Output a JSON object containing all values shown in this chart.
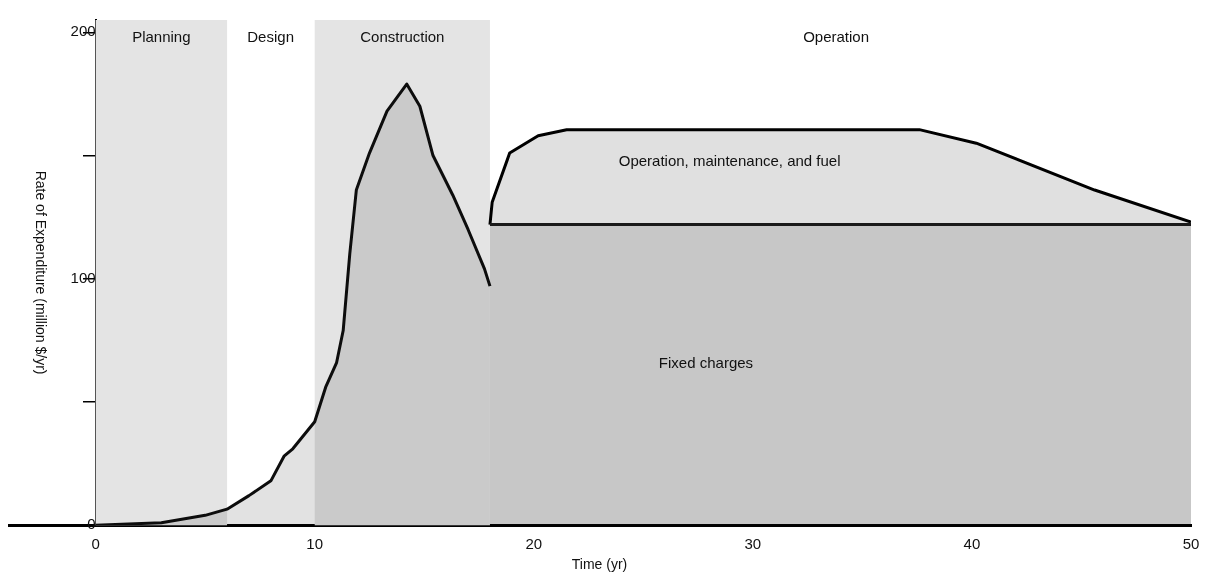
{
  "chart_data": {
    "type": "area",
    "xlabel": "Time (yr)",
    "ylabel": "Rate of Expenditure (million $/yr)",
    "xlim": [
      -4,
      50
    ],
    "xticks": [
      0,
      10,
      20,
      30,
      40,
      50
    ],
    "ylim": [
      0,
      205
    ],
    "yticks": [
      0,
      {
        "value": 50,
        "label": null
      },
      100,
      {
        "value": 150,
        "label": null
      },
      200
    ],
    "grid": false,
    "legend": false,
    "series": [
      {
        "color": "#0d0d0d",
        "x": [
          0,
          3,
          5,
          6,
          7,
          8,
          8.6,
          9,
          10,
          10.5,
          11,
          11.3,
          11.6,
          11.9,
          12.5,
          13.3,
          14.2,
          14.8,
          15.4,
          16.3,
          17.0,
          17.75,
          18
        ],
        "values": [
          0,
          1,
          4,
          6.5,
          12,
          18,
          28,
          31,
          42,
          56,
          66,
          79,
          110,
          136,
          151,
          168,
          179,
          170,
          150,
          134,
          120,
          104,
          97
        ]
      },
      {
        "color": "#1a1a1a",
        "x": [
          18,
          18.1,
          18.9,
          20.2,
          21.5,
          30,
          37.6,
          40.2,
          45.6,
          50
        ],
        "values": [
          122,
          122,
          122,
          122,
          122,
          122,
          122,
          122,
          122,
          122
        ]
      },
      {
        "color": "#000000",
        "x": [
          18,
          18.1,
          18.9,
          20.2,
          21.5,
          30,
          37.6,
          40.2,
          45.6,
          50
        ],
        "values": [
          122,
          131,
          151,
          158,
          160.5,
          160.5,
          160.5,
          155,
          136,
          123
        ]
      }
    ],
    "bands": [
      {
        "axis": "x",
        "from": 0,
        "to": 6,
        "label": "Planning",
        "color": "#e4e4e4"
      },
      {
        "axis": "x",
        "from": 10,
        "to": 18,
        "label": "Construction",
        "color": "#e4e4e4"
      }
    ],
    "annotations": [
      "Design",
      "Operation",
      "Operation, maintenance, and fuel",
      "Fixed charges"
    ]
  }
}
